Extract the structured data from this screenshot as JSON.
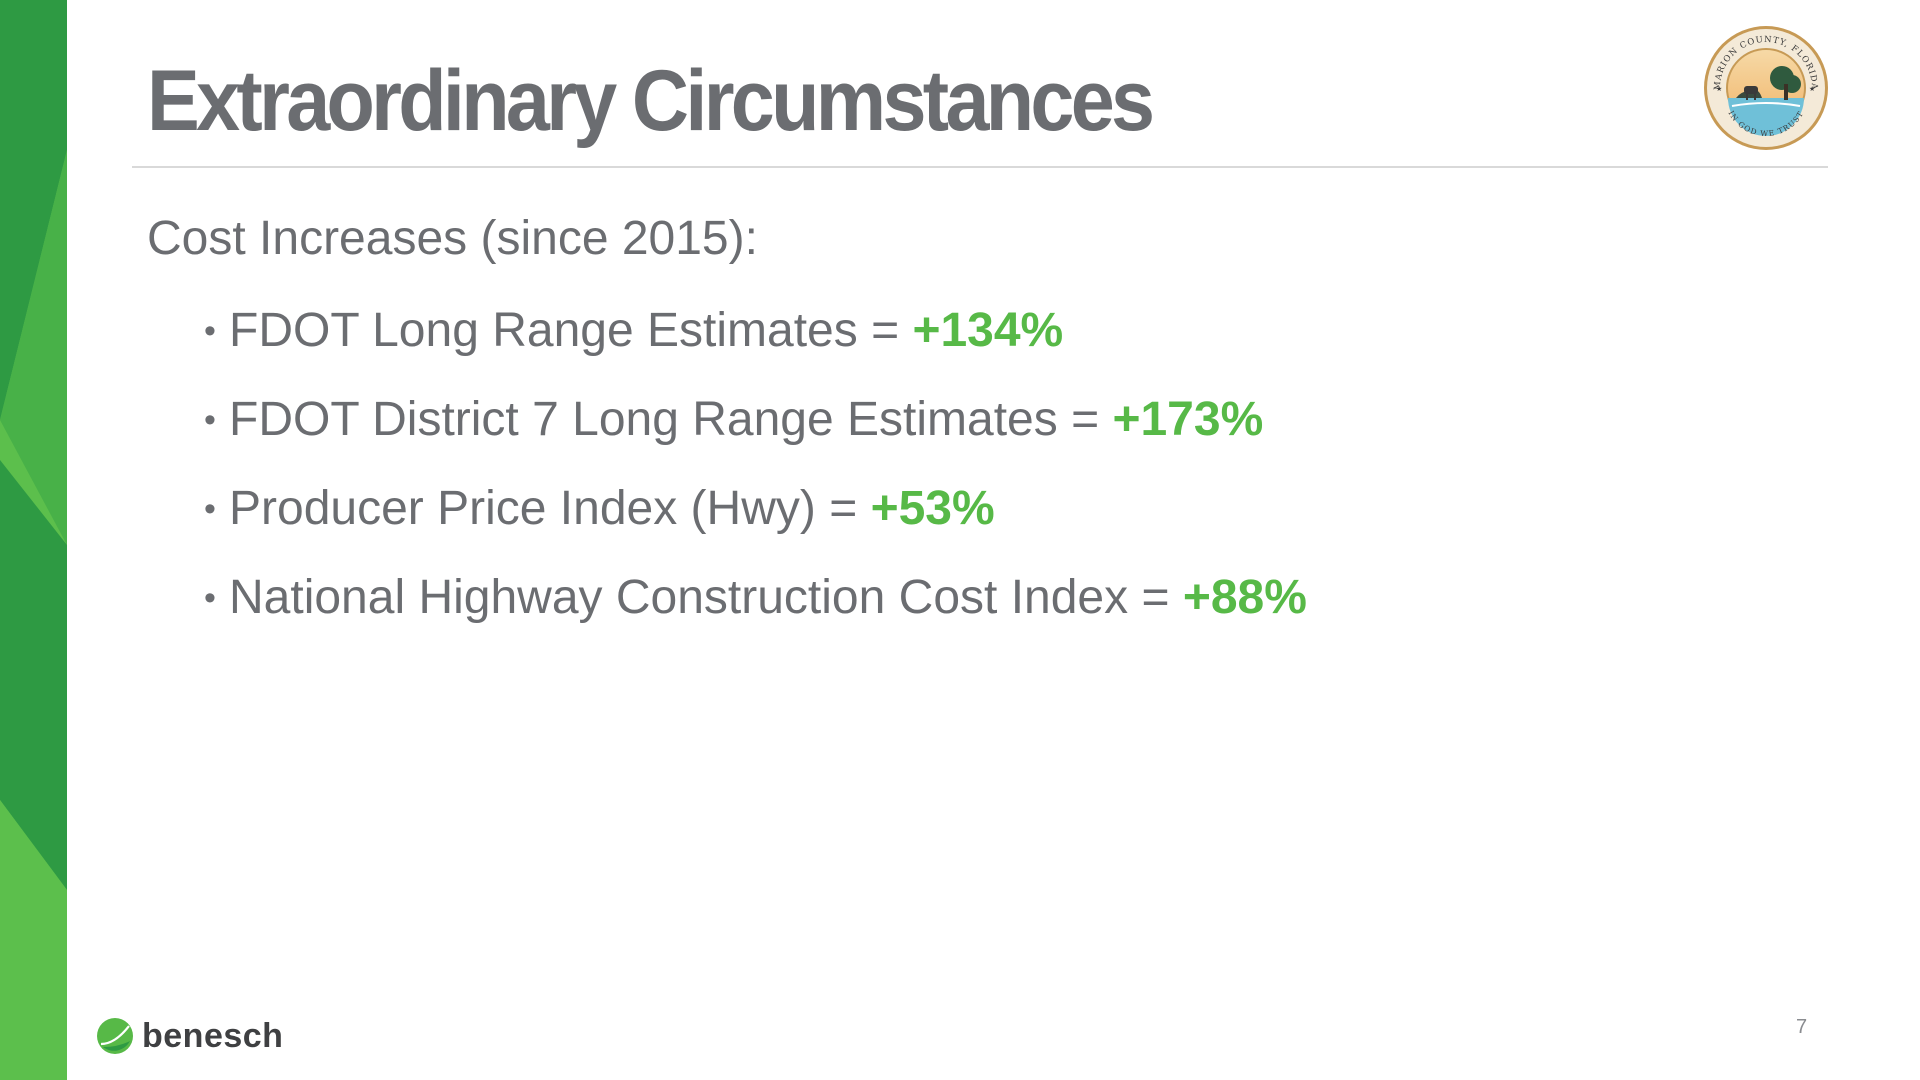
{
  "slide": {
    "title": "Extraordinary Circumstances",
    "lead": "Cost Increases (since 2015):",
    "bullets": [
      {
        "label": "FDOT Long Range Estimates = ",
        "value": "+134%"
      },
      {
        "label": "FDOT District 7 Long Range Estimates = ",
        "value": "+173%"
      },
      {
        "label": "Producer Price Index (Hwy) = ",
        "value": "+53%"
      },
      {
        "label": "National Highway Construction Cost Index = ",
        "value": "+88%"
      }
    ],
    "page_number": "7"
  },
  "branding": {
    "company": "benesch",
    "seal_text_top": "MARION COUNTY, FLORIDA",
    "seal_text_bottom": "IN GOD WE TRUST"
  },
  "colors": {
    "accent_green": "#57b947",
    "band_dark_green": "#2e9a43",
    "band_light_green": "#5cbf4c",
    "text_gray": "#6b6d71"
  },
  "icons": {
    "bullet": "bullet-dot-icon",
    "logo": "benesch-leaf-icon",
    "seal": "county-seal-icon"
  }
}
